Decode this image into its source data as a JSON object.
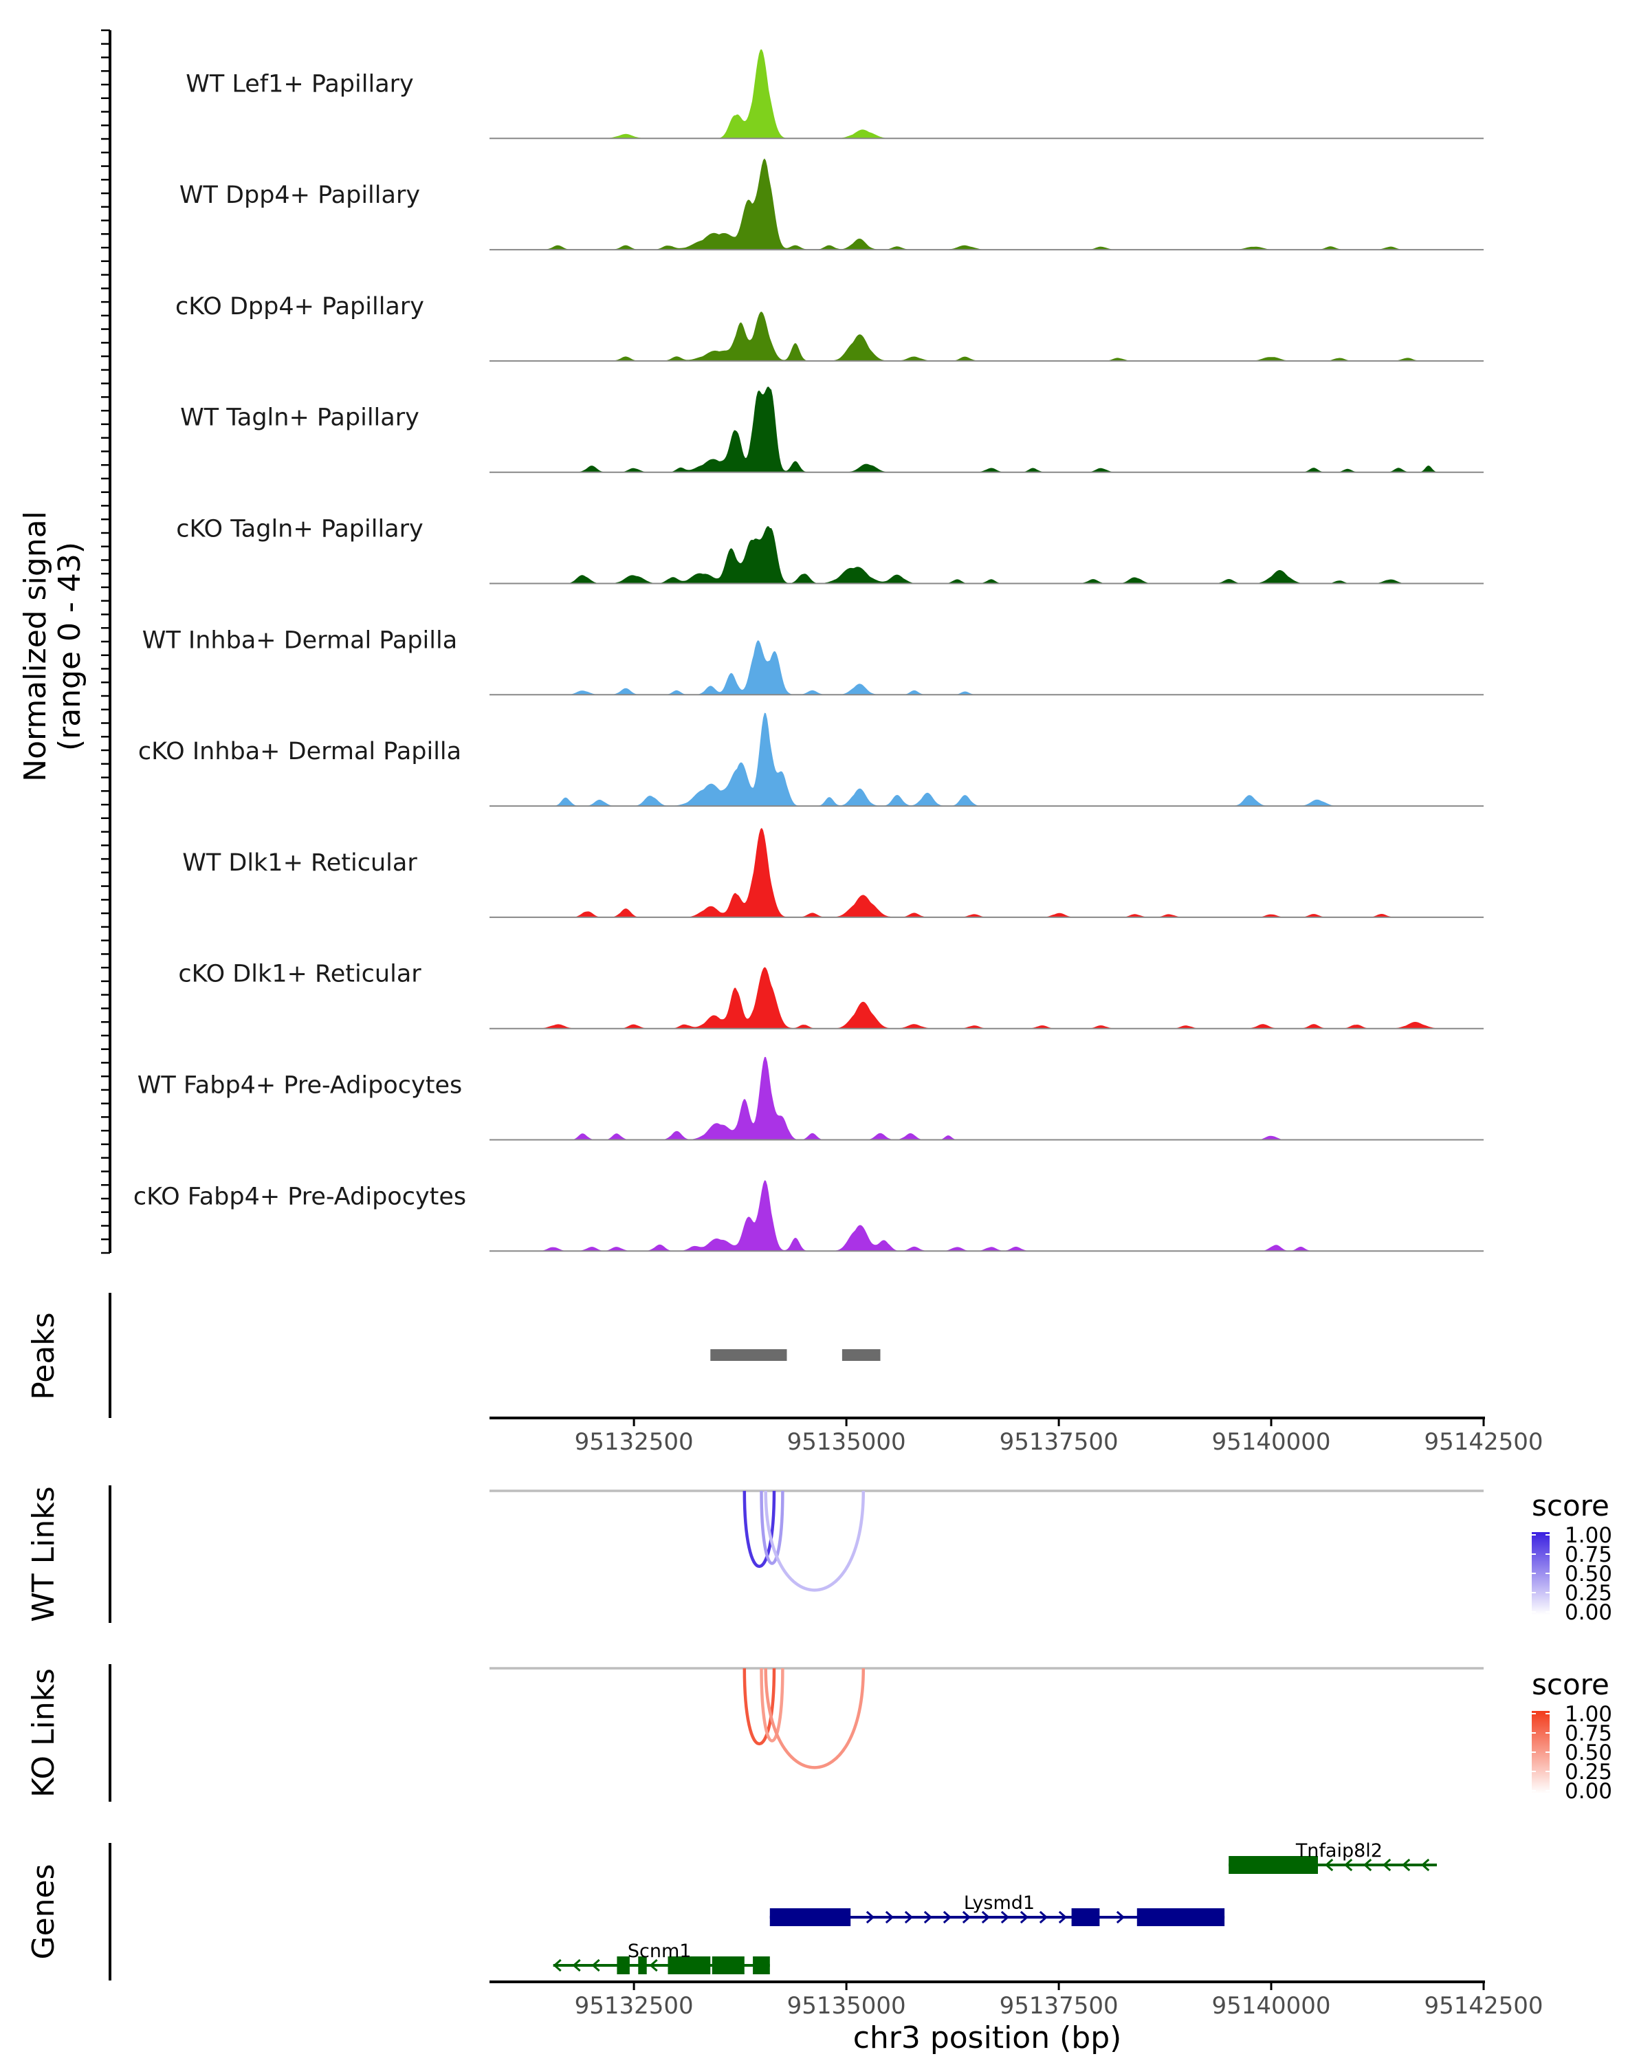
{
  "chart_data": {
    "type": "area",
    "region": {
      "chrom": "chr3",
      "start": 95130800,
      "end": 95142500
    },
    "x_axis": {
      "title": "chr3 position (bp)",
      "ticks": [
        95132500,
        95135000,
        95137500,
        95140000,
        95142500
      ],
      "tick_labels": [
        "95132500",
        "95135000",
        "95137500",
        "95140000",
        "95142500"
      ]
    },
    "coverage": {
      "ylabel_line1": "Normalized signal",
      "ylabel_line2": "(range 0 - 43)",
      "ylim": [
        0,
        43
      ],
      "tracks": [
        {
          "name": "WT Lef1+ Papillary",
          "color": "#7fd11c",
          "peaks": [
            [
              95132400,
              2,
              90
            ],
            [
              95133700,
              12,
              70
            ],
            [
              95134000,
              40,
              90
            ],
            [
              95135200,
              4,
              110
            ]
          ]
        },
        {
          "name": "WT Dpp4+ Papillary",
          "color": "#4a8707",
          "peaks": [
            [
              95131600,
              2,
              60
            ],
            [
              95132400,
              2,
              60
            ],
            [
              95132900,
              2,
              60
            ],
            [
              95133500,
              8,
              200
            ],
            [
              95133850,
              20,
              70
            ],
            [
              95134050,
              42,
              80
            ],
            [
              95134400,
              2,
              60
            ],
            [
              95134800,
              2,
              60
            ],
            [
              95135150,
              5,
              80
            ],
            [
              95135600,
              1.5,
              60
            ],
            [
              95136400,
              2,
              90
            ],
            [
              95138000,
              1.5,
              60
            ],
            [
              95139800,
              1.5,
              90
            ],
            [
              95140700,
              1.5,
              60
            ],
            [
              95141400,
              1.5,
              60
            ]
          ]
        },
        {
          "name": "cKO Dpp4+ Papillary",
          "color": "#4a8707",
          "peaks": [
            [
              95132400,
              2,
              60
            ],
            [
              95133000,
              2,
              60
            ],
            [
              95133500,
              5,
              160
            ],
            [
              95133750,
              16,
              60
            ],
            [
              95134000,
              22,
              90
            ],
            [
              95134400,
              8,
              50
            ],
            [
              95135150,
              12,
              110
            ],
            [
              95135800,
              2,
              80
            ],
            [
              95136400,
              2,
              60
            ],
            [
              95138200,
              1.5,
              60
            ],
            [
              95140000,
              2,
              90
            ],
            [
              95140800,
              1.5,
              60
            ],
            [
              95141600,
              1.5,
              60
            ]
          ]
        },
        {
          "name": "WT Tagln+ Papillary",
          "color": "#045704",
          "peaks": [
            [
              95132000,
              3,
              60
            ],
            [
              95132500,
              2,
              60
            ],
            [
              95133050,
              2,
              50
            ],
            [
              95133450,
              6,
              150
            ],
            [
              95133700,
              20,
              60
            ],
            [
              95133950,
              35,
              60
            ],
            [
              95134100,
              42,
              60
            ],
            [
              95134400,
              5,
              50
            ],
            [
              95135250,
              4,
              90
            ],
            [
              95136700,
              2,
              60
            ],
            [
              95137200,
              2,
              50
            ],
            [
              95138000,
              2,
              60
            ],
            [
              95140500,
              2,
              50
            ],
            [
              95140900,
              1.5,
              50
            ],
            [
              95141500,
              2,
              50
            ],
            [
              95141850,
              3,
              40
            ]
          ]
        },
        {
          "name": "cKO Tagln+ Papillary",
          "color": "#045704",
          "peaks": [
            [
              95131900,
              4,
              70
            ],
            [
              95132500,
              4,
              100
            ],
            [
              95132950,
              3,
              60
            ],
            [
              95133300,
              5,
              120
            ],
            [
              95133650,
              16,
              70
            ],
            [
              95133900,
              22,
              80
            ],
            [
              95134100,
              28,
              70
            ],
            [
              95134500,
              5,
              60
            ],
            [
              95135100,
              8,
              140
            ],
            [
              95135600,
              4,
              80
            ],
            [
              95136300,
              2,
              50
            ],
            [
              95136700,
              2,
              50
            ],
            [
              95137900,
              2,
              60
            ],
            [
              95138400,
              3,
              70
            ],
            [
              95139500,
              2,
              60
            ],
            [
              95140100,
              6,
              100
            ],
            [
              95140800,
              1.5,
              50
            ],
            [
              95141400,
              2,
              70
            ]
          ]
        },
        {
          "name": "WT Inhba+ Dermal Papilla",
          "color": "#5aaae6",
          "peaks": [
            [
              95131900,
              2,
              70
            ],
            [
              95132400,
              3,
              60
            ],
            [
              95133000,
              2,
              50
            ],
            [
              95133400,
              4,
              60
            ],
            [
              95133650,
              10,
              60
            ],
            [
              95133950,
              25,
              70
            ],
            [
              95134150,
              20,
              70
            ],
            [
              95134600,
              2,
              60
            ],
            [
              95135150,
              5,
              80
            ],
            [
              95135800,
              2,
              50
            ],
            [
              95136400,
              1.5,
              50
            ]
          ]
        },
        {
          "name": "cKO Inhba+ Dermal Papilla",
          "color": "#5aaae6",
          "peaks": [
            [
              95131700,
              4,
              50
            ],
            [
              95132100,
              3,
              60
            ],
            [
              95132700,
              5,
              70
            ],
            [
              95133400,
              10,
              150
            ],
            [
              95133750,
              20,
              90
            ],
            [
              95134050,
              43,
              70
            ],
            [
              95134250,
              15,
              60
            ],
            [
              95134800,
              4,
              50
            ],
            [
              95135150,
              8,
              80
            ],
            [
              95135600,
              5,
              60
            ],
            [
              95135950,
              6,
              70
            ],
            [
              95136400,
              5,
              60
            ],
            [
              95139750,
              5,
              70
            ],
            [
              95140550,
              3,
              80
            ]
          ]
        },
        {
          "name": "WT Dlk1+ Reticular",
          "color": "#f01e1e",
          "peaks": [
            [
              95131950,
              3,
              60
            ],
            [
              95132400,
              4,
              60
            ],
            [
              95133400,
              5,
              100
            ],
            [
              95133700,
              12,
              60
            ],
            [
              95134000,
              40,
              90
            ],
            [
              95134600,
              2,
              60
            ],
            [
              95135200,
              10,
              120
            ],
            [
              95135800,
              2,
              60
            ],
            [
              95136500,
              1.5,
              60
            ],
            [
              95137500,
              2,
              70
            ],
            [
              95138400,
              1.5,
              60
            ],
            [
              95138800,
              1.5,
              60
            ],
            [
              95140000,
              1.5,
              60
            ],
            [
              95140500,
              1.5,
              60
            ],
            [
              95141300,
              1.5,
              60
            ]
          ]
        },
        {
          "name": "cKO Dlk1+ Reticular",
          "color": "#f01e1e",
          "peaks": [
            [
              95131600,
              2,
              80
            ],
            [
              95132500,
              2,
              60
            ],
            [
              95133100,
              2,
              60
            ],
            [
              95133450,
              6,
              100
            ],
            [
              95133700,
              20,
              60
            ],
            [
              95134050,
              28,
              100
            ],
            [
              95134500,
              2,
              50
            ],
            [
              95135200,
              12,
              110
            ],
            [
              95135800,
              2,
              80
            ],
            [
              95136500,
              1.5,
              60
            ],
            [
              95137300,
              1.5,
              60
            ],
            [
              95138000,
              1.5,
              60
            ],
            [
              95139000,
              1.5,
              60
            ],
            [
              95139900,
              2,
              70
            ],
            [
              95140500,
              2,
              60
            ],
            [
              95141000,
              2,
              60
            ],
            [
              95141700,
              3,
              100
            ]
          ]
        },
        {
          "name": "WT Fabp4+ Pre-Adipocytes",
          "color": "#aa33e6",
          "peaks": [
            [
              95131900,
              3,
              50
            ],
            [
              95132300,
              3,
              50
            ],
            [
              95133000,
              4,
              60
            ],
            [
              95133500,
              8,
              120
            ],
            [
              95133800,
              18,
              60
            ],
            [
              95134050,
              38,
              70
            ],
            [
              95134250,
              10,
              60
            ],
            [
              95134600,
              3,
              50
            ],
            [
              95135400,
              3,
              60
            ],
            [
              95135750,
              3,
              60
            ],
            [
              95136200,
              2,
              40
            ],
            [
              95140000,
              2,
              60
            ]
          ]
        },
        {
          "name": "cKO Fabp4+ Pre-Adipocytes",
          "color": "#aa33e6",
          "peaks": [
            [
              95131550,
              2,
              60
            ],
            [
              95132000,
              2,
              60
            ],
            [
              95132300,
              2,
              60
            ],
            [
              95132800,
              3,
              60
            ],
            [
              95133200,
              2,
              60
            ],
            [
              95133500,
              6,
              120
            ],
            [
              95133850,
              15,
              70
            ],
            [
              95134050,
              32,
              70
            ],
            [
              95134400,
              6,
              50
            ],
            [
              95135150,
              12,
              100
            ],
            [
              95135450,
              5,
              60
            ],
            [
              95135800,
              2,
              60
            ],
            [
              95136300,
              2,
              60
            ],
            [
              95136700,
              2,
              60
            ],
            [
              95137000,
              2,
              60
            ],
            [
              95140050,
              3,
              60
            ],
            [
              95140350,
              2,
              50
            ]
          ]
        }
      ]
    },
    "peaks_track": {
      "label": "Peaks",
      "regions": [
        [
          95133400,
          95134300
        ],
        [
          95134950,
          95135400
        ]
      ]
    },
    "link_tracks": [
      {
        "label": "WT Links",
        "legend_title": "score",
        "low_color": "#ffffff",
        "high_color": "#3a20e0",
        "legend_ticks": [
          "1.00",
          "0.75",
          "0.50",
          "0.25",
          "0.00"
        ],
        "links": [
          {
            "start": 95133800,
            "end": 95134150,
            "score": 0.9
          },
          {
            "start": 95134000,
            "end": 95134250,
            "score": 0.45
          },
          {
            "start": 95134050,
            "end": 95135200,
            "score": 0.3
          }
        ]
      },
      {
        "label": "KO Links",
        "legend_title": "score",
        "low_color": "#ffffff",
        "high_color": "#f23b1b",
        "legend_ticks": [
          "1.00",
          "0.75",
          "0.50",
          "0.25",
          "0.00"
        ],
        "links": [
          {
            "start": 95133800,
            "end": 95134150,
            "score": 0.85
          },
          {
            "start": 95134000,
            "end": 95134250,
            "score": 0.5
          },
          {
            "start": 95134050,
            "end": 95135200,
            "score": 0.55
          }
        ]
      }
    ],
    "genes_track": {
      "label": "Genes",
      "genes": [
        {
          "name": "Tnfaip8l2",
          "strand": "-",
          "color": "#006400",
          "start": 95139500,
          "end": 95141950,
          "exons": [
            [
              95139500,
              95140550
            ]
          ],
          "label_pos": 95140800
        },
        {
          "name": "Lysmd1",
          "strand": "+",
          "color": "#00008b",
          "start": 95134100,
          "end": 95139450,
          "exons": [
            [
              95134100,
              95135050
            ],
            [
              95137650,
              95137980
            ],
            [
              95138420,
              95139450
            ]
          ],
          "label_pos": 95136800
        },
        {
          "name": "Scnm1",
          "strand": "-",
          "color": "#006400",
          "start": 95131550,
          "end": 95134100,
          "exons": [
            [
              95132300,
              95132450
            ],
            [
              95132550,
              95132650
            ],
            [
              95132900,
              95133400
            ],
            [
              95133420,
              95133800
            ],
            [
              95133900,
              95134100
            ]
          ],
          "label_pos": 95132800
        }
      ]
    }
  }
}
